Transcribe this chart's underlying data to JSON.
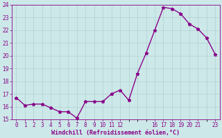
{
  "x": [
    0,
    1,
    2,
    3,
    4,
    5,
    6,
    7,
    8,
    9,
    10,
    11,
    12,
    13,
    14,
    15,
    16,
    17,
    18,
    19,
    20,
    21,
    22,
    23
  ],
  "y": [
    16.7,
    16.1,
    16.2,
    16.2,
    15.9,
    15.6,
    15.6,
    15.1,
    16.4,
    16.4,
    16.4,
    17.0,
    17.3,
    16.5,
    18.6,
    20.2,
    22.0,
    23.8,
    23.7,
    23.3,
    22.5,
    22.1,
    21.4,
    20.1
  ],
  "line_color": "#880088",
  "marker": "*",
  "marker_size": 3.5,
  "background_color": "#cce8e8",
  "grid_color": "#aacccc",
  "xlabel": "Windchill (Refroidissement éolien,°C)",
  "xlabel_color": "#880088",
  "tick_color": "#880088",
  "ylim": [
    15,
    24
  ],
  "xlim": [
    -0.5,
    23.5
  ],
  "yticks": [
    15,
    16,
    17,
    18,
    19,
    20,
    21,
    22,
    23,
    24
  ],
  "line_width": 1.0
}
